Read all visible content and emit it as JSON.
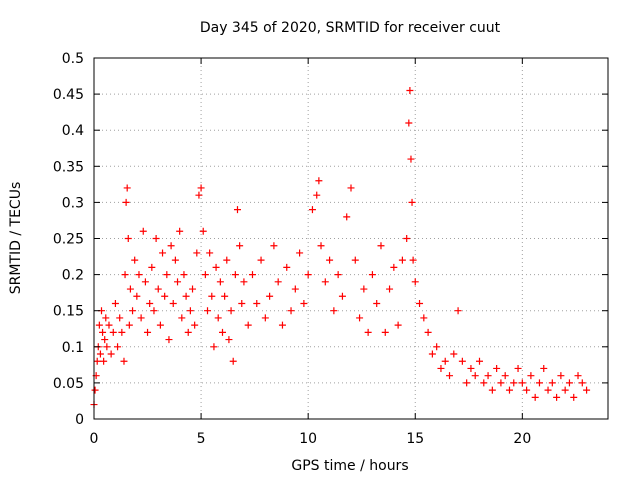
{
  "chart_data": {
    "type": "scatter",
    "title": "Day 345 of 2020, SRMTID for receiver cuut",
    "xlabel": "GPS time / hours",
    "ylabel": "SRMTID / TECUs",
    "xlim": [
      0,
      24
    ],
    "ylim": [
      0,
      0.5
    ],
    "xticks": [
      0,
      5,
      10,
      15,
      20
    ],
    "xtick_labels": [
      "0",
      "5",
      "10",
      "15",
      "20"
    ],
    "yticks": [
      0,
      0.05,
      0.1,
      0.15,
      0.2,
      0.25,
      0.3,
      0.35,
      0.4,
      0.45,
      0.5
    ],
    "ytick_labels": [
      "0",
      "0.05",
      "0.1",
      "0.15",
      "0.2",
      "0.25",
      "0.3",
      "0.35",
      "0.4",
      "0.45",
      "0.5"
    ],
    "grid": true,
    "legend": "none",
    "marker": "+",
    "colors": {
      "series": "#ff0000",
      "grid": "#a0a0a0",
      "axis": "#000000"
    },
    "series": [
      {
        "points": [
          [
            0.0,
            0.02
          ],
          [
            0.05,
            0.04
          ],
          [
            0.1,
            0.06
          ],
          [
            0.15,
            0.08
          ],
          [
            0.2,
            0.1
          ],
          [
            0.25,
            0.13
          ],
          [
            0.3,
            0.09
          ],
          [
            0.35,
            0.15
          ],
          [
            0.4,
            0.12
          ],
          [
            0.45,
            0.08
          ],
          [
            0.5,
            0.11
          ],
          [
            0.55,
            0.14
          ],
          [
            0.6,
            0.1
          ],
          [
            0.7,
            0.13
          ],
          [
            0.8,
            0.09
          ],
          [
            0.9,
            0.12
          ],
          [
            1.0,
            0.16
          ],
          [
            1.1,
            0.1
          ],
          [
            1.2,
            0.14
          ],
          [
            1.3,
            0.12
          ],
          [
            1.4,
            0.08
          ],
          [
            1.45,
            0.2
          ],
          [
            1.5,
            0.3
          ],
          [
            1.55,
            0.32
          ],
          [
            1.6,
            0.25
          ],
          [
            1.65,
            0.13
          ],
          [
            1.7,
            0.18
          ],
          [
            1.8,
            0.15
          ],
          [
            1.9,
            0.22
          ],
          [
            2.0,
            0.17
          ],
          [
            2.1,
            0.2
          ],
          [
            2.2,
            0.14
          ],
          [
            2.3,
            0.26
          ],
          [
            2.4,
            0.19
          ],
          [
            2.5,
            0.12
          ],
          [
            2.6,
            0.16
          ],
          [
            2.7,
            0.21
          ],
          [
            2.8,
            0.15
          ],
          [
            2.9,
            0.25
          ],
          [
            3.0,
            0.18
          ],
          [
            3.1,
            0.13
          ],
          [
            3.2,
            0.23
          ],
          [
            3.3,
            0.17
          ],
          [
            3.4,
            0.2
          ],
          [
            3.5,
            0.11
          ],
          [
            3.6,
            0.24
          ],
          [
            3.7,
            0.16
          ],
          [
            3.8,
            0.22
          ],
          [
            3.9,
            0.19
          ],
          [
            4.0,
            0.26
          ],
          [
            4.1,
            0.14
          ],
          [
            4.2,
            0.2
          ],
          [
            4.3,
            0.17
          ],
          [
            4.4,
            0.12
          ],
          [
            4.5,
            0.15
          ],
          [
            4.6,
            0.18
          ],
          [
            4.7,
            0.13
          ],
          [
            4.8,
            0.23
          ],
          [
            4.9,
            0.31
          ],
          [
            5.0,
            0.32
          ],
          [
            5.1,
            0.26
          ],
          [
            5.2,
            0.2
          ],
          [
            5.3,
            0.15
          ],
          [
            5.4,
            0.23
          ],
          [
            5.5,
            0.17
          ],
          [
            5.6,
            0.1
          ],
          [
            5.7,
            0.21
          ],
          [
            5.8,
            0.14
          ],
          [
            5.9,
            0.19
          ],
          [
            6.0,
            0.12
          ],
          [
            6.1,
            0.17
          ],
          [
            6.2,
            0.22
          ],
          [
            6.3,
            0.11
          ],
          [
            6.4,
            0.15
          ],
          [
            6.5,
            0.08
          ],
          [
            6.6,
            0.2
          ],
          [
            6.7,
            0.29
          ],
          [
            6.8,
            0.24
          ],
          [
            6.9,
            0.16
          ],
          [
            7.0,
            0.19
          ],
          [
            7.2,
            0.13
          ],
          [
            7.4,
            0.2
          ],
          [
            7.6,
            0.16
          ],
          [
            7.8,
            0.22
          ],
          [
            8.0,
            0.14
          ],
          [
            8.2,
            0.17
          ],
          [
            8.4,
            0.24
          ],
          [
            8.6,
            0.19
          ],
          [
            8.8,
            0.13
          ],
          [
            9.0,
            0.21
          ],
          [
            9.2,
            0.15
          ],
          [
            9.4,
            0.18
          ],
          [
            9.6,
            0.23
          ],
          [
            9.8,
            0.16
          ],
          [
            10.0,
            0.2
          ],
          [
            10.2,
            0.29
          ],
          [
            10.4,
            0.31
          ],
          [
            10.5,
            0.33
          ],
          [
            10.6,
            0.24
          ],
          [
            10.8,
            0.19
          ],
          [
            11.0,
            0.22
          ],
          [
            11.2,
            0.15
          ],
          [
            11.4,
            0.2
          ],
          [
            11.6,
            0.17
          ],
          [
            11.8,
            0.28
          ],
          [
            12.0,
            0.32
          ],
          [
            12.2,
            0.22
          ],
          [
            12.4,
            0.14
          ],
          [
            12.6,
            0.18
          ],
          [
            12.8,
            0.12
          ],
          [
            13.0,
            0.2
          ],
          [
            13.2,
            0.16
          ],
          [
            13.4,
            0.24
          ],
          [
            13.6,
            0.12
          ],
          [
            13.8,
            0.18
          ],
          [
            14.0,
            0.21
          ],
          [
            14.2,
            0.13
          ],
          [
            14.4,
            0.22
          ],
          [
            14.6,
            0.25
          ],
          [
            14.7,
            0.41
          ],
          [
            14.75,
            0.455
          ],
          [
            14.8,
            0.36
          ],
          [
            14.85,
            0.3
          ],
          [
            14.9,
            0.22
          ],
          [
            15.0,
            0.19
          ],
          [
            15.2,
            0.16
          ],
          [
            15.4,
            0.14
          ],
          [
            15.6,
            0.12
          ],
          [
            15.8,
            0.09
          ],
          [
            16.0,
            0.1
          ],
          [
            16.2,
            0.07
          ],
          [
            16.4,
            0.08
          ],
          [
            16.6,
            0.06
          ],
          [
            16.8,
            0.09
          ],
          [
            17.0,
            0.15
          ],
          [
            17.2,
            0.08
          ],
          [
            17.4,
            0.05
          ],
          [
            17.6,
            0.07
          ],
          [
            17.8,
            0.06
          ],
          [
            18.0,
            0.08
          ],
          [
            18.2,
            0.05
          ],
          [
            18.4,
            0.06
          ],
          [
            18.6,
            0.04
          ],
          [
            18.8,
            0.07
          ],
          [
            19.0,
            0.05
          ],
          [
            19.2,
            0.06
          ],
          [
            19.4,
            0.04
          ],
          [
            19.6,
            0.05
          ],
          [
            19.8,
            0.07
          ],
          [
            20.0,
            0.05
          ],
          [
            20.2,
            0.04
          ],
          [
            20.4,
            0.06
          ],
          [
            20.6,
            0.03
          ],
          [
            20.8,
            0.05
          ],
          [
            21.0,
            0.07
          ],
          [
            21.2,
            0.04
          ],
          [
            21.4,
            0.05
          ],
          [
            21.6,
            0.03
          ],
          [
            21.8,
            0.06
          ],
          [
            22.0,
            0.04
          ],
          [
            22.2,
            0.05
          ],
          [
            22.4,
            0.03
          ],
          [
            22.6,
            0.06
          ],
          [
            22.8,
            0.05
          ],
          [
            23.0,
            0.04
          ]
        ]
      }
    ]
  }
}
